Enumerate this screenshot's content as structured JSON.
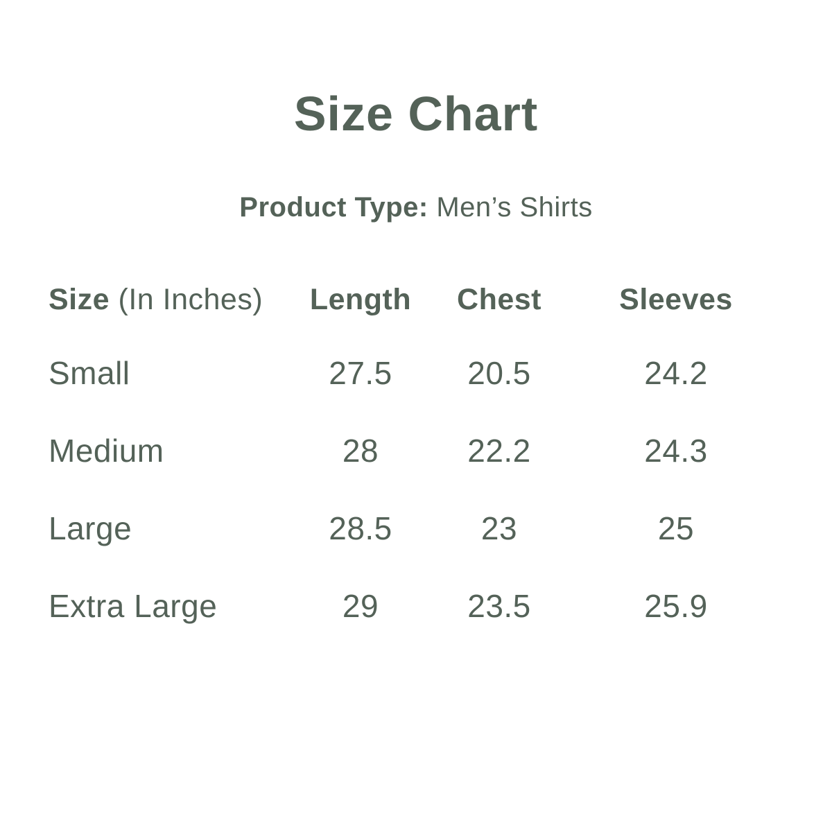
{
  "page": {
    "title": "Size Chart",
    "product_type_label": "Product Type:",
    "product_type_value": "Men’s Shirts"
  },
  "colors": {
    "text": "#546258",
    "background": "#ffffff"
  },
  "table": {
    "columns": [
      {
        "label": "Size",
        "sublabel": "(In Inches)"
      },
      {
        "label": "Length"
      },
      {
        "label": "Chest"
      },
      {
        "label": "Sleeves"
      }
    ],
    "rows": [
      {
        "size": "Small",
        "length": "27.5",
        "chest": "20.5",
        "sleeves": "24.2"
      },
      {
        "size": "Medium",
        "length": "28",
        "chest": "22.2",
        "sleeves": "24.3"
      },
      {
        "size": "Large",
        "length": "28.5",
        "chest": "23",
        "sleeves": "25"
      },
      {
        "size": "Extra Large",
        "length": "29",
        "chest": "23.5",
        "sleeves": "25.9"
      }
    ]
  },
  "chart_data": {
    "type": "table",
    "title": "Size Chart",
    "subtitle": "Product Type: Men’s Shirts",
    "unit": "Inches",
    "columns": [
      "Size (In Inches)",
      "Length",
      "Chest",
      "Sleeves"
    ],
    "rows": [
      [
        "Small",
        27.5,
        20.5,
        24.2
      ],
      [
        "Medium",
        28,
        22.2,
        24.3
      ],
      [
        "Large",
        28.5,
        23,
        25
      ],
      [
        "Extra Large",
        29,
        23.5,
        25.9
      ]
    ]
  }
}
